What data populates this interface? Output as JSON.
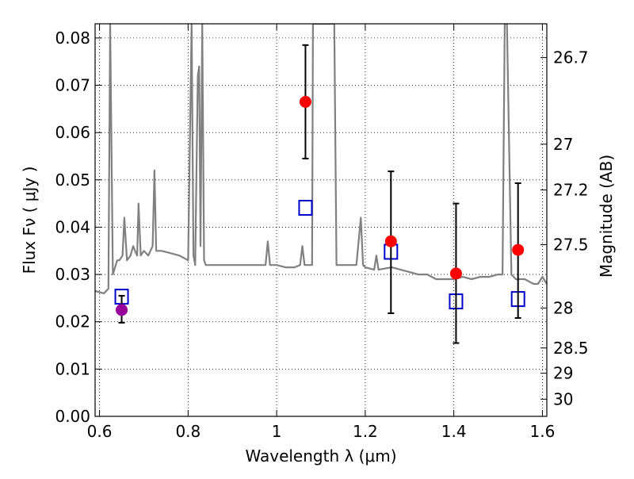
{
  "chart_data": {
    "type": "scatter",
    "title": "",
    "xlabel": "Wavelength  λ (μm)",
    "ylabel": "Flux  Fν ( μJy )",
    "y2label": "Magnitude (AB)",
    "xlim": [
      0.59,
      1.61
    ],
    "ylim": [
      0.0,
      0.083
    ],
    "grid": true,
    "x_ticks": [
      0.6,
      0.8,
      1.0,
      1.2,
      1.4,
      1.6
    ],
    "x_tick_labels": [
      "0.6",
      "0.8",
      "1",
      "1.2",
      "1.4",
      "1.6"
    ],
    "y_ticks": [
      0.0,
      0.01,
      0.02,
      0.03,
      0.04,
      0.05,
      0.06,
      0.07,
      0.08
    ],
    "y_tick_labels": [
      "0.00",
      "0.01",
      "0.02",
      "0.03",
      "0.04",
      "0.05",
      "0.06",
      "0.07",
      "0.08"
    ],
    "y2_ticks": [
      26.7,
      27.0,
      27.2,
      27.5,
      28.0,
      28.5,
      29.0,
      30.0
    ],
    "y2_tick_labels": [
      "26.7",
      "27",
      "27.2",
      "27.5",
      "28",
      "28.5",
      "29",
      "30"
    ],
    "colors": {
      "spectrum": "#808080",
      "observed": "#ff0000",
      "observed_optical": "#990099",
      "model": "#0000cc",
      "errorbar": "#000000"
    },
    "series": [
      {
        "style": "spectrum",
        "x": [
          0.59,
          0.61,
          0.62,
          0.624,
          0.63,
          0.64,
          0.645,
          0.652,
          0.656,
          0.662,
          0.67,
          0.676,
          0.68,
          0.685,
          0.688,
          0.693,
          0.7,
          0.71,
          0.72,
          0.724,
          0.728,
          0.74,
          0.76,
          0.78,
          0.8,
          0.808,
          0.812,
          0.816,
          0.822,
          0.825,
          0.828,
          0.832,
          0.836,
          0.84,
          0.845,
          0.86,
          0.9,
          0.95,
          0.975,
          0.98,
          0.985,
          1.0,
          1.02,
          1.04,
          1.053,
          1.058,
          1.063,
          1.07,
          1.08,
          1.082,
          1.09,
          1.13,
          1.135,
          1.15,
          1.18,
          1.19,
          1.195,
          1.2,
          1.22,
          1.225,
          1.23,
          1.26,
          1.28,
          1.3,
          1.32,
          1.34,
          1.36,
          1.38,
          1.4,
          1.42,
          1.44,
          1.46,
          1.48,
          1.5,
          1.51,
          1.515,
          1.52,
          1.53,
          1.54,
          1.56,
          1.57,
          1.58,
          1.59,
          1.6,
          1.61
        ],
        "y": [
          0.0265,
          0.026,
          0.027,
          0.083,
          0.03,
          0.033,
          0.033,
          0.034,
          0.042,
          0.033,
          0.034,
          0.036,
          0.035,
          0.034,
          0.045,
          0.034,
          0.035,
          0.034,
          0.036,
          0.052,
          0.035,
          0.035,
          0.0345,
          0.034,
          0.033,
          0.083,
          0.034,
          0.032,
          0.072,
          0.074,
          0.036,
          0.083,
          0.033,
          0.032,
          0.032,
          0.032,
          0.032,
          0.032,
          0.032,
          0.037,
          0.032,
          0.032,
          0.0315,
          0.0315,
          0.032,
          0.036,
          0.032,
          0.032,
          0.032,
          0.083,
          0.083,
          0.083,
          0.032,
          0.032,
          0.032,
          0.042,
          0.032,
          0.0315,
          0.031,
          0.034,
          0.031,
          0.0315,
          0.031,
          0.0305,
          0.03,
          0.03,
          0.029,
          0.029,
          0.029,
          0.0295,
          0.029,
          0.0295,
          0.0295,
          0.03,
          0.03,
          0.083,
          0.083,
          0.03,
          0.029,
          0.029,
          0.0285,
          0.028,
          0.028,
          0.0295,
          0.028
        ]
      },
      {
        "style": "observed",
        "x": [
          1.065,
          1.258,
          1.405,
          1.545
        ],
        "y": [
          0.0665,
          0.037,
          0.0302,
          0.0352
        ],
        "yerr_low": [
          0.0545,
          0.0218,
          0.0155,
          0.0208
        ],
        "yerr_high": [
          0.0785,
          0.0518,
          0.045,
          0.0493
        ]
      },
      {
        "style": "observed_optical",
        "x": [
          0.65
        ],
        "y": [
          0.0225
        ],
        "yerr_low": [
          0.0198
        ],
        "yerr_high": [
          0.0255
        ]
      },
      {
        "style": "model",
        "x": [
          0.65,
          1.065,
          1.258,
          1.405,
          1.545
        ],
        "y": [
          0.0253,
          0.0441,
          0.0348,
          0.0243,
          0.0248
        ]
      }
    ]
  }
}
